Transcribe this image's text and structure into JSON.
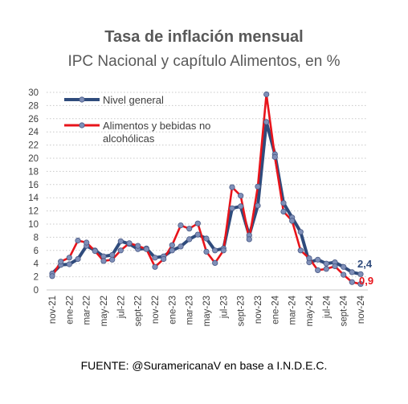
{
  "title": "Tasa de inflación mensual",
  "subtitle": "IPC Nacional y capítulo Alimentos, en %",
  "source": "FUENTE: @SuramericanaV en base a I.N.D.E.C.",
  "colors": {
    "general": "#2f4b7c",
    "alimentos": "#e8141b",
    "marker": "#7f8fb8",
    "grid": "#c8c8c8"
  },
  "chart_data": {
    "type": "line",
    "title": "Tasa de inflación mensual",
    "subtitle": "IPC Nacional y capítulo Alimentos, en %",
    "ylim": [
      0,
      30
    ],
    "yticks": [
      0,
      2,
      4,
      6,
      8,
      10,
      12,
      14,
      16,
      18,
      20,
      22,
      24,
      26,
      28,
      30
    ],
    "grid": "horizontal dotted",
    "legend_position": "top-left",
    "x_tick_labels": [
      "nov-21",
      "ene-22",
      "mar-22",
      "may-22",
      "jul-22",
      "sept-22",
      "nov-22",
      "ene-23",
      "mar-23",
      "may-23",
      "jul-23",
      "sept-23",
      "nov-23",
      "ene-24",
      "mar-24",
      "may-24",
      "jul-24",
      "sept-24",
      "nov-24"
    ],
    "categories": [
      "nov-21",
      "dic-21",
      "ene-22",
      "feb-22",
      "mar-22",
      "abr-22",
      "may-22",
      "jun-22",
      "jul-22",
      "ago-22",
      "sept-22",
      "oct-22",
      "nov-22",
      "dic-22",
      "ene-23",
      "feb-23",
      "mar-23",
      "abr-23",
      "may-23",
      "jun-23",
      "jul-23",
      "ago-23",
      "sept-23",
      "oct-23",
      "nov-23",
      "dic-23",
      "ene-24",
      "feb-24",
      "mar-24",
      "abr-24",
      "may-24",
      "jun-24",
      "jul-24",
      "ago-24",
      "sept-24",
      "oct-24",
      "nov-24"
    ],
    "series": [
      {
        "name": "Nivel general",
        "values": [
          2.5,
          3.8,
          3.9,
          4.7,
          6.7,
          6.0,
          5.1,
          5.3,
          7.4,
          7.0,
          6.2,
          6.3,
          4.9,
          5.1,
          6.0,
          6.6,
          7.7,
          8.4,
          7.8,
          6.0,
          6.3,
          12.4,
          12.7,
          8.3,
          12.8,
          25.5,
          20.6,
          13.2,
          11.0,
          8.8,
          4.2,
          4.6,
          4.0,
          4.2,
          3.5,
          2.7,
          2.4
        ],
        "end_label": "2,4"
      },
      {
        "name": "Alimentos y bebidas no alcohólicas",
        "values": [
          2.1,
          4.3,
          4.9,
          7.5,
          7.2,
          5.9,
          4.4,
          4.6,
          6.0,
          7.1,
          6.7,
          6.2,
          3.5,
          4.7,
          6.8,
          9.8,
          9.3,
          10.1,
          5.8,
          4.1,
          6.0,
          15.6,
          14.3,
          7.7,
          15.7,
          29.7,
          20.2,
          11.9,
          10.5,
          6.0,
          4.8,
          3.0,
          3.2,
          3.6,
          2.3,
          1.2,
          0.9
        ],
        "end_label": "0,9"
      }
    ]
  }
}
